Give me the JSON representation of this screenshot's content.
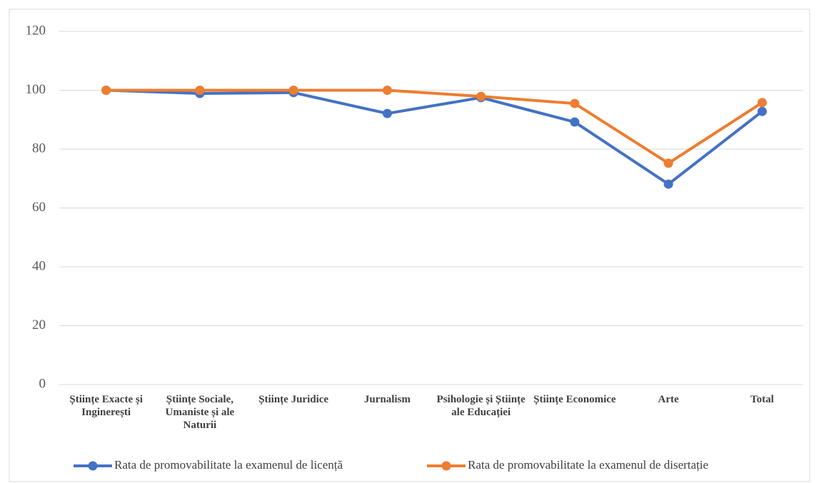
{
  "chart_data": {
    "type": "line",
    "categories": [
      "Științe Exacte și Inginerești",
      "Științe Sociale, Umaniste și ale Naturii",
      "Științe Juridice",
      "Jurnalism",
      "Psihologie și Științe ale Educației",
      "Științe Economice",
      "Arte",
      "Total"
    ],
    "series": [
      {
        "name": "Rata de promovabilitate la examenul de licență",
        "color": "#4472c4",
        "values": [
          100,
          98.9,
          99.2,
          92.1,
          97.5,
          89.2,
          68.1,
          92.8
        ]
      },
      {
        "name": "Rata de promovabilitate la examenul de disertație",
        "color": "#ed7d31",
        "values": [
          100,
          100,
          100,
          100,
          97.9,
          95.5,
          75.2,
          95.8
        ]
      }
    ],
    "ylim": [
      0,
      120
    ],
    "yticks": [
      0,
      20,
      40,
      60,
      80,
      100,
      120
    ],
    "grid": true,
    "legend": "bottom"
  }
}
